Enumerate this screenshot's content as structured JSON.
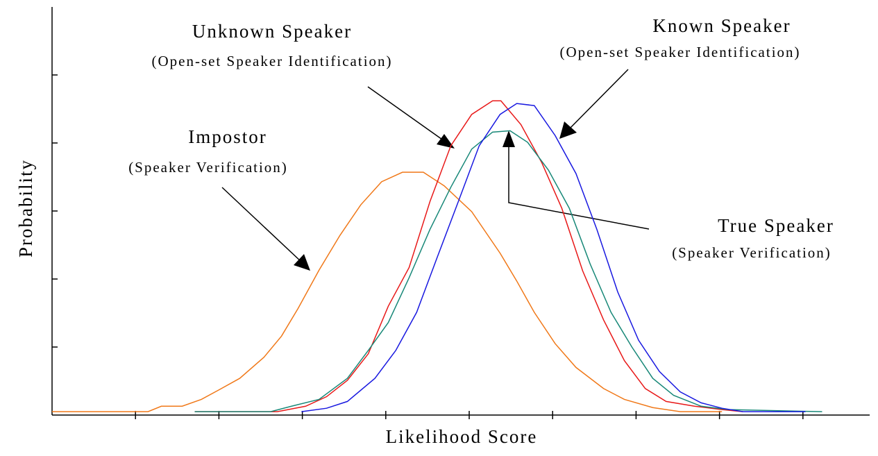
{
  "chart_data": {
    "type": "line",
    "x_label": "Likelihood Score",
    "y_label": "Probability",
    "xlim": [
      0,
      9.8
    ],
    "ylim": [
      0,
      6
    ],
    "xticks": [
      1,
      2,
      3,
      4,
      5,
      6,
      7,
      8,
      9
    ],
    "yticks": [
      1,
      2,
      3,
      4,
      5
    ],
    "annotations": [
      {
        "text": "Unknown Speaker",
        "subtext": "(Open-set Speaker Identification)"
      },
      {
        "text": "Known Speaker",
        "subtext": "(Open-set Speaker Identification)"
      },
      {
        "text": "Impostor",
        "subtext": "(Speaker Verification)"
      },
      {
        "text": "True Speaker",
        "subtext": "(Speaker Verification)"
      }
    ],
    "series": [
      {
        "color": "#f07818",
        "x": [
          0,
          1.15,
          1.31,
          1.56,
          1.79,
          2,
          2.25,
          2.54,
          2.75,
          2.95,
          3.2,
          3.45,
          3.7,
          3.95,
          4.2,
          4.45,
          4.7,
          5.03,
          5.37,
          5.57,
          5.78,
          6.03,
          6.28,
          6.61,
          6.86,
          7.2,
          7.53,
          8.03
        ],
        "values": [
          0.05,
          0.05,
          0.13,
          0.13,
          0.23,
          0.37,
          0.54,
          0.85,
          1.16,
          1.57,
          2.13,
          2.64,
          3.09,
          3.43,
          3.57,
          3.57,
          3.37,
          2.99,
          2.38,
          1.97,
          1.51,
          1.05,
          0.7,
          0.39,
          0.23,
          0.11,
          0.05,
          0.05
        ]
      },
      {
        "color": "#e81818",
        "x": [
          1.71,
          2.7,
          3.04,
          3.29,
          3.54,
          3.79,
          4.03,
          4.28,
          4.53,
          4.78,
          5.03,
          5.28,
          5.38,
          5.62,
          5.87,
          6.11,
          6.36,
          6.61,
          6.86,
          7.11,
          7.36,
          7.7,
          8.03,
          8.28
        ],
        "values": [
          0.05,
          0.05,
          0.13,
          0.27,
          0.51,
          0.9,
          1.6,
          2.17,
          3.14,
          3.96,
          4.42,
          4.62,
          4.62,
          4.27,
          3.71,
          3.04,
          2.12,
          1.4,
          0.8,
          0.39,
          0.2,
          0.13,
          0.08,
          0.05
        ]
      },
      {
        "color": "#188878",
        "x": [
          1.71,
          2.62,
          2.87,
          3.2,
          3.54,
          3.79,
          4.03,
          4.28,
          4.53,
          4.78,
          5.03,
          5.28,
          5.49,
          5.7,
          5.95,
          6.2,
          6.45,
          6.7,
          6.95,
          7.2,
          7.45,
          7.78,
          8.11,
          9.23
        ],
        "values": [
          0.05,
          0.05,
          0.13,
          0.23,
          0.54,
          0.95,
          1.36,
          2.02,
          2.73,
          3.35,
          3.91,
          4.16,
          4.18,
          4.01,
          3.6,
          3.04,
          2.22,
          1.51,
          1.0,
          0.54,
          0.29,
          0.13,
          0.08,
          0.05
        ]
      },
      {
        "color": "#1818e0",
        "x": [
          2.99,
          3.29,
          3.54,
          3.87,
          4.12,
          4.37,
          4.62,
          4.87,
          5.12,
          5.37,
          5.57,
          5.78,
          6.03,
          6.28,
          6.53,
          6.78,
          7.03,
          7.28,
          7.53,
          7.78,
          8.03,
          8.28,
          9.03
        ],
        "values": [
          0.05,
          0.1,
          0.2,
          0.54,
          0.95,
          1.51,
          2.33,
          3.14,
          3.96,
          4.42,
          4.58,
          4.55,
          4.11,
          3.55,
          2.73,
          1.81,
          1.1,
          0.64,
          0.34,
          0.18,
          0.1,
          0.05,
          0.05
        ]
      }
    ]
  }
}
